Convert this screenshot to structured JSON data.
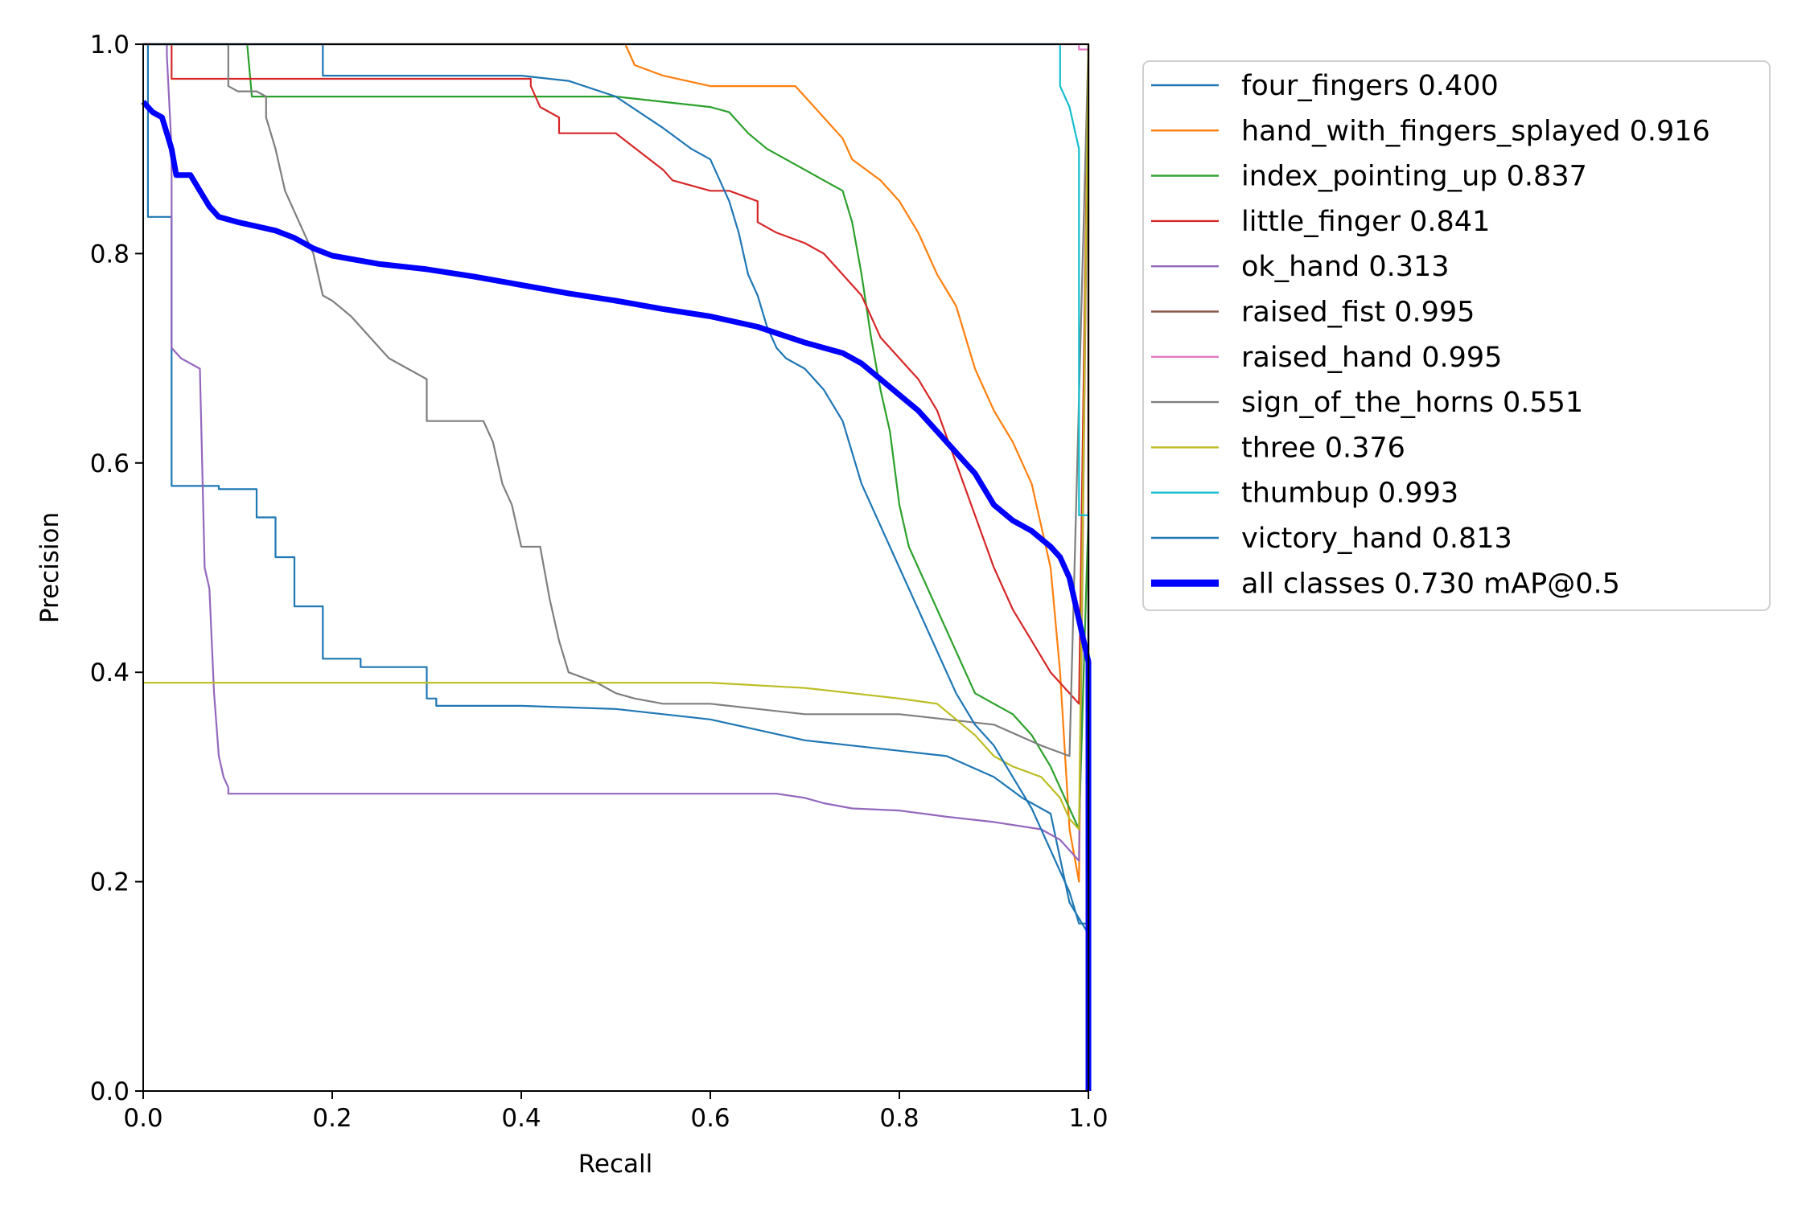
{
  "chart_data": {
    "type": "line",
    "title": "",
    "xlabel": "Recall",
    "ylabel": "Precision",
    "xlim": [
      0,
      1
    ],
    "ylim": [
      0,
      1
    ],
    "x_ticks": [
      "0.0",
      "0.2",
      "0.4",
      "0.6",
      "0.8",
      "1.0"
    ],
    "y_ticks": [
      "0.0",
      "0.2",
      "0.4",
      "0.6",
      "0.8",
      "1.0"
    ],
    "grid": false,
    "legend_position": "outside-right",
    "series": [
      {
        "name": "four_fingers",
        "ap": "0.400",
        "color": "#1f77b4",
        "x": [
          0,
          0.005,
          0.005,
          0.03,
          0.03,
          0.08,
          0.08,
          0.12,
          0.12,
          0.14,
          0.14,
          0.16,
          0.16,
          0.19,
          0.19,
          0.23,
          0.23,
          0.3,
          0.3,
          0.31,
          0.31,
          0.4,
          0.5,
          0.55,
          0.6,
          0.65,
          0.7,
          0.75,
          0.8,
          0.85,
          0.9,
          0.93,
          0.96,
          0.98,
          1.0,
          1.0
        ],
        "y": [
          1.0,
          1.0,
          0.835,
          0.835,
          0.578,
          0.578,
          0.575,
          0.575,
          0.548,
          0.548,
          0.51,
          0.51,
          0.463,
          0.463,
          0.413,
          0.413,
          0.405,
          0.405,
          0.375,
          0.375,
          0.368,
          0.368,
          0.365,
          0.36,
          0.355,
          0.345,
          0.335,
          0.33,
          0.325,
          0.32,
          0.3,
          0.28,
          0.265,
          0.18,
          0.15,
          0.0
        ]
      },
      {
        "name": "hand_with_fingers_splayed",
        "ap": "0.916",
        "color": "#ff7f0e",
        "x": [
          0,
          0.51,
          0.52,
          0.55,
          0.6,
          0.65,
          0.69,
          0.7,
          0.72,
          0.74,
          0.75,
          0.78,
          0.8,
          0.82,
          0.84,
          0.86,
          0.88,
          0.9,
          0.92,
          0.94,
          0.96,
          0.97,
          0.98,
          0.99,
          1.0,
          1.0
        ],
        "y": [
          1.0,
          1.0,
          0.98,
          0.97,
          0.96,
          0.96,
          0.96,
          0.95,
          0.93,
          0.91,
          0.89,
          0.87,
          0.85,
          0.82,
          0.78,
          0.75,
          0.69,
          0.65,
          0.62,
          0.58,
          0.5,
          0.4,
          0.25,
          0.2,
          0.99,
          0.0
        ]
      },
      {
        "name": "index_pointing_up",
        "ap": "0.837",
        "color": "#2ca02c",
        "x": [
          0,
          0.11,
          0.115,
          0.2,
          0.3,
          0.4,
          0.5,
          0.55,
          0.6,
          0.62,
          0.64,
          0.66,
          0.68,
          0.7,
          0.72,
          0.74,
          0.75,
          0.76,
          0.77,
          0.78,
          0.79,
          0.8,
          0.81,
          0.82,
          0.84,
          0.86,
          0.88,
          0.9,
          0.92,
          0.94,
          0.96,
          0.98,
          0.99,
          1.0,
          1.0
        ],
        "y": [
          1.0,
          1.0,
          0.95,
          0.95,
          0.95,
          0.95,
          0.95,
          0.945,
          0.94,
          0.935,
          0.915,
          0.9,
          0.89,
          0.88,
          0.87,
          0.86,
          0.83,
          0.78,
          0.72,
          0.67,
          0.63,
          0.56,
          0.52,
          0.5,
          0.46,
          0.42,
          0.38,
          0.37,
          0.36,
          0.34,
          0.31,
          0.27,
          0.25,
          0.55,
          0.0
        ]
      },
      {
        "name": "little_finger",
        "ap": "0.841",
        "color": "#d62728",
        "x": [
          0,
          0.03,
          0.03,
          0.41,
          0.41,
          0.42,
          0.44,
          0.44,
          0.5,
          0.55,
          0.56,
          0.6,
          0.62,
          0.65,
          0.65,
          0.67,
          0.7,
          0.72,
          0.74,
          0.76,
          0.78,
          0.8,
          0.82,
          0.84,
          0.86,
          0.88,
          0.9,
          0.92,
          0.94,
          0.96,
          0.98,
          0.99,
          1.0,
          1.0
        ],
        "y": [
          1.0,
          1.0,
          0.967,
          0.967,
          0.96,
          0.94,
          0.93,
          0.915,
          0.915,
          0.88,
          0.87,
          0.86,
          0.86,
          0.85,
          0.83,
          0.82,
          0.81,
          0.8,
          0.78,
          0.76,
          0.72,
          0.7,
          0.68,
          0.65,
          0.6,
          0.55,
          0.5,
          0.46,
          0.43,
          0.4,
          0.38,
          0.37,
          1.0,
          0.0
        ]
      },
      {
        "name": "ok_hand",
        "ap": "0.313",
        "color": "#9467bd",
        "x": [
          0,
          0.025,
          0.025,
          0.03,
          0.03,
          0.04,
          0.06,
          0.065,
          0.07,
          0.075,
          0.08,
          0.085,
          0.09,
          0.09,
          0.2,
          0.4,
          0.6,
          0.67,
          0.7,
          0.72,
          0.75,
          0.8,
          0.85,
          0.9,
          0.95,
          0.97,
          0.98,
          0.99,
          1.0,
          1.0
        ],
        "y": [
          1.0,
          1.0,
          0.99,
          0.9,
          0.71,
          0.7,
          0.69,
          0.5,
          0.48,
          0.38,
          0.32,
          0.3,
          0.29,
          0.284,
          0.284,
          0.284,
          0.284,
          0.284,
          0.28,
          0.275,
          0.27,
          0.268,
          0.262,
          0.257,
          0.25,
          0.24,
          0.23,
          0.22,
          1.0,
          0.0
        ]
      },
      {
        "name": "raised_fist",
        "ap": "0.995",
        "color": "#8c564b",
        "x": [
          0,
          1.0,
          1.0
        ],
        "y": [
          1.0,
          1.0,
          0.0
        ]
      },
      {
        "name": "raised_hand",
        "ap": "0.995",
        "color": "#e377c2",
        "x": [
          0,
          0.99,
          0.99,
          1.0,
          1.0
        ],
        "y": [
          1.0,
          1.0,
          0.995,
          0.995,
          0.0
        ]
      },
      {
        "name": "sign_of_the_horns",
        "ap": "0.551",
        "color": "#7f7f7f",
        "x": [
          0,
          0.09,
          0.09,
          0.1,
          0.12,
          0.13,
          0.13,
          0.14,
          0.15,
          0.16,
          0.18,
          0.19,
          0.2,
          0.22,
          0.24,
          0.26,
          0.28,
          0.3,
          0.3,
          0.36,
          0.37,
          0.38,
          0.39,
          0.4,
          0.42,
          0.43,
          0.44,
          0.45,
          0.48,
          0.5,
          0.52,
          0.55,
          0.6,
          0.65,
          0.7,
          0.75,
          0.8,
          0.85,
          0.9,
          0.95,
          0.98,
          1.0,
          1.0
        ],
        "y": [
          1.0,
          1.0,
          0.96,
          0.955,
          0.955,
          0.95,
          0.93,
          0.9,
          0.86,
          0.84,
          0.8,
          0.76,
          0.755,
          0.74,
          0.72,
          0.7,
          0.69,
          0.68,
          0.64,
          0.64,
          0.62,
          0.58,
          0.56,
          0.52,
          0.52,
          0.47,
          0.43,
          0.4,
          0.39,
          0.38,
          0.375,
          0.37,
          0.37,
          0.365,
          0.36,
          0.36,
          0.36,
          0.355,
          0.35,
          0.33,
          0.32,
          1.0,
          0.0
        ]
      },
      {
        "name": "three",
        "ap": "0.376",
        "color": "#bcbd22",
        "x": [
          0,
          0.6,
          0.7,
          0.75,
          0.8,
          0.84,
          0.88,
          0.9,
          0.92,
          0.95,
          0.97,
          0.98,
          0.99,
          1.0,
          1.0
        ],
        "y": [
          0.39,
          0.39,
          0.385,
          0.38,
          0.375,
          0.37,
          0.34,
          0.32,
          0.31,
          0.3,
          0.28,
          0.26,
          0.25,
          1.0,
          0.0
        ]
      },
      {
        "name": "thumbup",
        "ap": "0.993",
        "color": "#17becf",
        "x": [
          0,
          0.97,
          0.97,
          0.98,
          0.99,
          0.99,
          1.0,
          1.0
        ],
        "y": [
          1.0,
          1.0,
          0.96,
          0.94,
          0.9,
          0.55,
          0.55,
          0.0
        ]
      },
      {
        "name": "victory_hand",
        "ap": "0.813",
        "color": "#1f77b4",
        "x": [
          0,
          0.19,
          0.19,
          0.4,
          0.45,
          0.5,
          0.55,
          0.58,
          0.6,
          0.62,
          0.63,
          0.64,
          0.65,
          0.66,
          0.67,
          0.68,
          0.7,
          0.72,
          0.74,
          0.75,
          0.76,
          0.78,
          0.8,
          0.82,
          0.84,
          0.86,
          0.88,
          0.9,
          0.92,
          0.94,
          0.96,
          0.98,
          0.99,
          1.0,
          1.0
        ],
        "y": [
          1.0,
          1.0,
          0.97,
          0.97,
          0.965,
          0.95,
          0.92,
          0.9,
          0.89,
          0.85,
          0.82,
          0.78,
          0.76,
          0.73,
          0.71,
          0.7,
          0.69,
          0.67,
          0.64,
          0.61,
          0.58,
          0.54,
          0.5,
          0.46,
          0.42,
          0.38,
          0.35,
          0.33,
          0.3,
          0.27,
          0.23,
          0.19,
          0.16,
          0.16,
          0.0
        ]
      },
      {
        "name": "all classes",
        "ap": "0.730 mAP@0.5",
        "color": "#0000ff",
        "x": [
          0,
          0.01,
          0.02,
          0.03,
          0.035,
          0.04,
          0.05,
          0.06,
          0.07,
          0.08,
          0.1,
          0.12,
          0.14,
          0.16,
          0.18,
          0.2,
          0.25,
          0.3,
          0.35,
          0.4,
          0.45,
          0.5,
          0.55,
          0.6,
          0.65,
          0.7,
          0.72,
          0.74,
          0.76,
          0.78,
          0.8,
          0.82,
          0.84,
          0.86,
          0.88,
          0.9,
          0.92,
          0.94,
          0.96,
          0.97,
          0.98,
          0.99,
          1.0,
          1.0
        ],
        "y": [
          0.945,
          0.935,
          0.93,
          0.9,
          0.875,
          0.875,
          0.875,
          0.86,
          0.845,
          0.835,
          0.83,
          0.826,
          0.822,
          0.815,
          0.805,
          0.798,
          0.79,
          0.785,
          0.778,
          0.77,
          0.762,
          0.755,
          0.747,
          0.74,
          0.73,
          0.715,
          0.71,
          0.705,
          0.695,
          0.68,
          0.665,
          0.65,
          0.63,
          0.61,
          0.59,
          0.56,
          0.545,
          0.535,
          0.52,
          0.51,
          0.49,
          0.45,
          0.41,
          0.0
        ]
      }
    ]
  }
}
